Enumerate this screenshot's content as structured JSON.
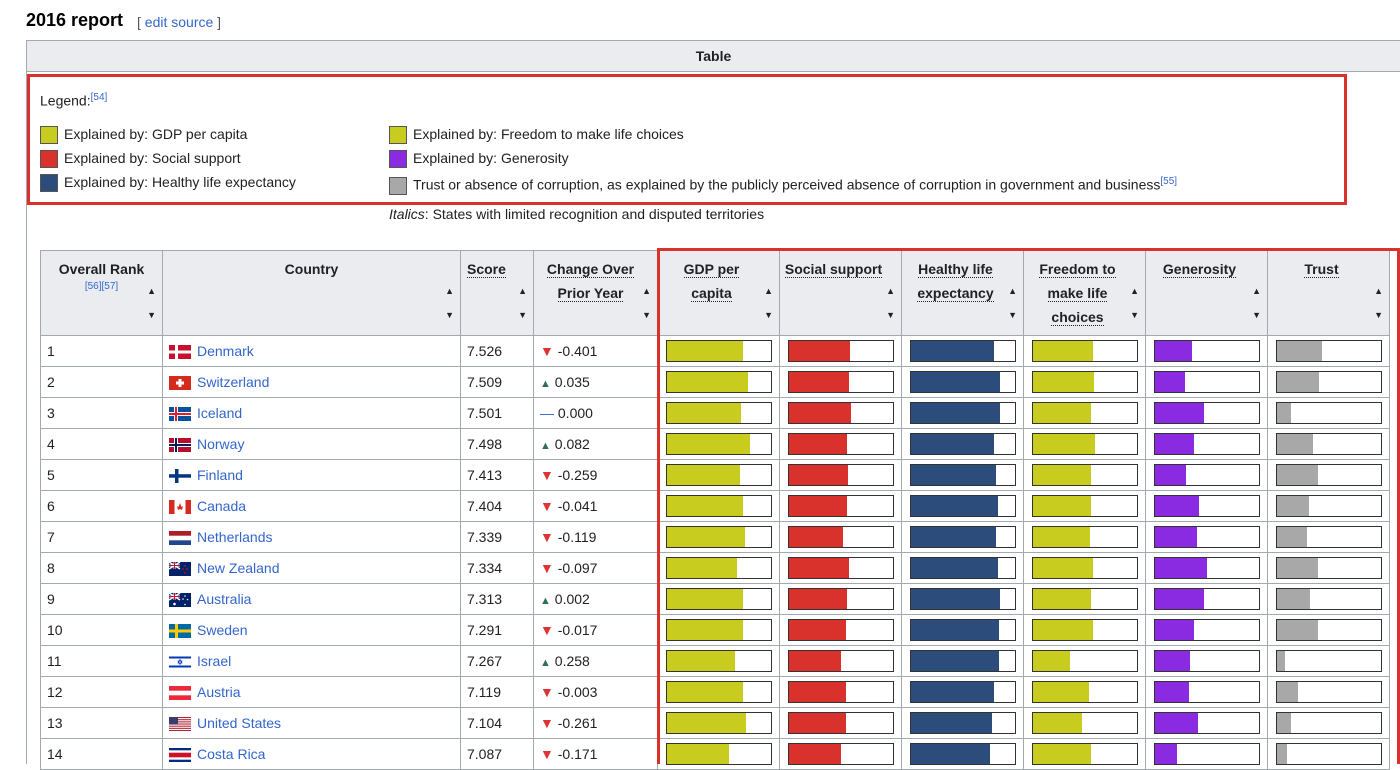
{
  "heading": "2016 report",
  "edit_link": "edit source",
  "table_title": "Table",
  "legend": {
    "title": "Legend:",
    "ref": "[54]",
    "items": [
      {
        "label": "Explained by: GDP per capita",
        "color": "#c8cc1f"
      },
      {
        "label": "Explained by: Social support",
        "color": "#d9312b"
      },
      {
        "label": "Explained by: Healthy life expectancy",
        "color": "#2c4c7c"
      },
      {
        "label": "Explained by: Freedom to make life choices",
        "color": "#c8cc1f"
      },
      {
        "label": "Explained by: Generosity",
        "color": "#8a2be2"
      },
      {
        "label": "Trust or absence of corruption, as explained by the publicly perceived absence of corruption in government and business",
        "color": "#a8a8a8",
        "ref": "[55]"
      }
    ],
    "italic_note_em": "Italics",
    "italic_note_rest": ": States with limited recognition and disputed territories"
  },
  "columns": {
    "rank": "Overall Rank",
    "rank_refs": "[56][57]",
    "country": "Country",
    "score": "Score",
    "change": "Change Over Prior Year",
    "gdp": "GDP per capita",
    "social": "Social support",
    "health": "Healthy life expectancy",
    "freedom": "Freedom to make life choices",
    "generosity": "Generosity",
    "trust": "Trust"
  },
  "colors": {
    "gdp": "#c8cc1f",
    "social": "#d9312b",
    "health": "#2c4c7c",
    "freedom": "#c8cc1f",
    "generosity": "#8a2be2",
    "trust": "#a8a8a8"
  },
  "rows": [
    {
      "rank": "1",
      "country": "Denmark",
      "flag": "denmark",
      "score": "7.526",
      "dir": "down",
      "change": "-0.401",
      "bars": [
        0.74,
        0.59,
        0.8,
        0.58,
        0.36,
        0.44
      ]
    },
    {
      "rank": "2",
      "country": "Switzerland",
      "flag": "switzerland",
      "score": "7.509",
      "dir": "up",
      "change": "0.035",
      "bars": [
        0.78,
        0.58,
        0.86,
        0.59,
        0.29,
        0.41
      ]
    },
    {
      "rank": "3",
      "country": "Iceland",
      "flag": "iceland",
      "score": "7.501",
      "dir": "flat",
      "change": "0.000",
      "bars": [
        0.72,
        0.6,
        0.86,
        0.56,
        0.48,
        0.14
      ]
    },
    {
      "rank": "4",
      "country": "Norway",
      "flag": "norway",
      "score": "7.498",
      "dir": "up",
      "change": "0.082",
      "bars": [
        0.8,
        0.56,
        0.8,
        0.6,
        0.38,
        0.35
      ]
    },
    {
      "rank": "5",
      "country": "Finland",
      "flag": "finland",
      "score": "7.413",
      "dir": "down",
      "change": "-0.259",
      "bars": [
        0.71,
        0.57,
        0.82,
        0.56,
        0.3,
        0.4
      ]
    },
    {
      "rank": "6",
      "country": "Canada",
      "flag": "canada",
      "score": "7.404",
      "dir": "down",
      "change": "-0.041",
      "bars": [
        0.74,
        0.56,
        0.84,
        0.56,
        0.43,
        0.31
      ]
    },
    {
      "rank": "7",
      "country": "Netherlands",
      "flag": "netherlands",
      "score": "7.339",
      "dir": "down",
      "change": "-0.119",
      "bars": [
        0.75,
        0.52,
        0.82,
        0.55,
        0.41,
        0.29
      ]
    },
    {
      "rank": "8",
      "country": "New Zealand",
      "flag": "newzealand",
      "score": "7.334",
      "dir": "down",
      "change": "-0.097",
      "bars": [
        0.68,
        0.58,
        0.84,
        0.58,
        0.5,
        0.4
      ]
    },
    {
      "rank": "9",
      "country": "Australia",
      "flag": "australia",
      "score": "7.313",
      "dir": "up",
      "change": "0.002",
      "bars": [
        0.74,
        0.56,
        0.86,
        0.56,
        0.48,
        0.32
      ]
    },
    {
      "rank": "10",
      "country": "Sweden",
      "flag": "sweden",
      "score": "7.291",
      "dir": "down",
      "change": "-0.017",
      "bars": [
        0.74,
        0.55,
        0.85,
        0.58,
        0.38,
        0.4
      ]
    },
    {
      "rank": "11",
      "country": "Israel",
      "flag": "israel",
      "score": "7.267",
      "dir": "up",
      "change": "0.258",
      "bars": [
        0.66,
        0.5,
        0.85,
        0.36,
        0.34,
        0.08
      ]
    },
    {
      "rank": "12",
      "country": "Austria",
      "flag": "austria",
      "score": "7.119",
      "dir": "down",
      "change": "-0.003",
      "bars": [
        0.74,
        0.55,
        0.8,
        0.54,
        0.33,
        0.21
      ]
    },
    {
      "rank": "13",
      "country": "United States",
      "flag": "us",
      "score": "7.104",
      "dir": "down",
      "change": "-0.261",
      "bars": [
        0.76,
        0.55,
        0.78,
        0.48,
        0.42,
        0.14
      ]
    },
    {
      "rank": "14",
      "country": "Costa Rica",
      "flag": "costarica",
      "score": "7.087",
      "dir": "down",
      "change": "-0.171",
      "bars": [
        0.6,
        0.5,
        0.76,
        0.56,
        0.22,
        0.1
      ]
    }
  ]
}
